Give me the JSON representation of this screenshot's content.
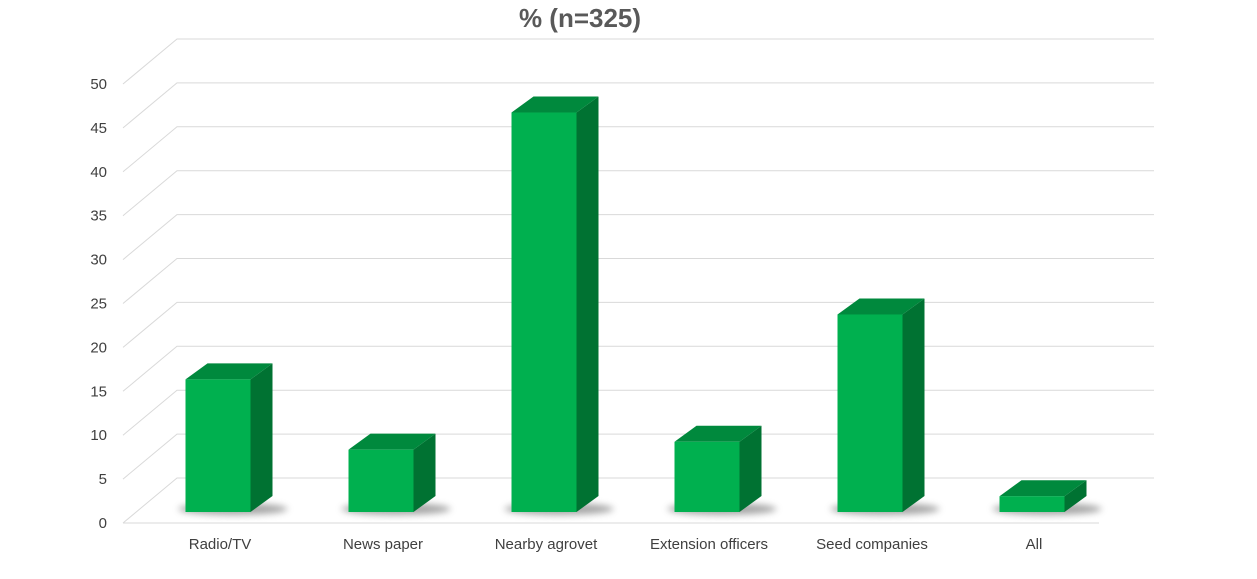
{
  "chart_data": {
    "type": "bar",
    "title": "% (n=325)",
    "xlabel": "",
    "ylabel": "",
    "categories": [
      "Radio/TV",
      "News paper",
      "Nearby agrovet",
      "Extension officers",
      "Seed companies",
      "All"
    ],
    "values": [
      15.1,
      7.1,
      45.5,
      8.0,
      22.5,
      1.8
    ],
    "ylim": [
      0,
      50
    ],
    "yticks": [
      "0",
      "5",
      "10",
      "15",
      "20",
      "25",
      "30",
      "35",
      "40",
      "45",
      "50"
    ],
    "grid": true,
    "legend": "none",
    "three_d": true,
    "colors": {
      "bar_front": "#00b04f",
      "bar_top": "#00893d",
      "bar_side": "#007232",
      "shadow": "#8a8a8a",
      "grid": "#d9d9d9",
      "text": "#404040",
      "title": "#595959"
    }
  }
}
